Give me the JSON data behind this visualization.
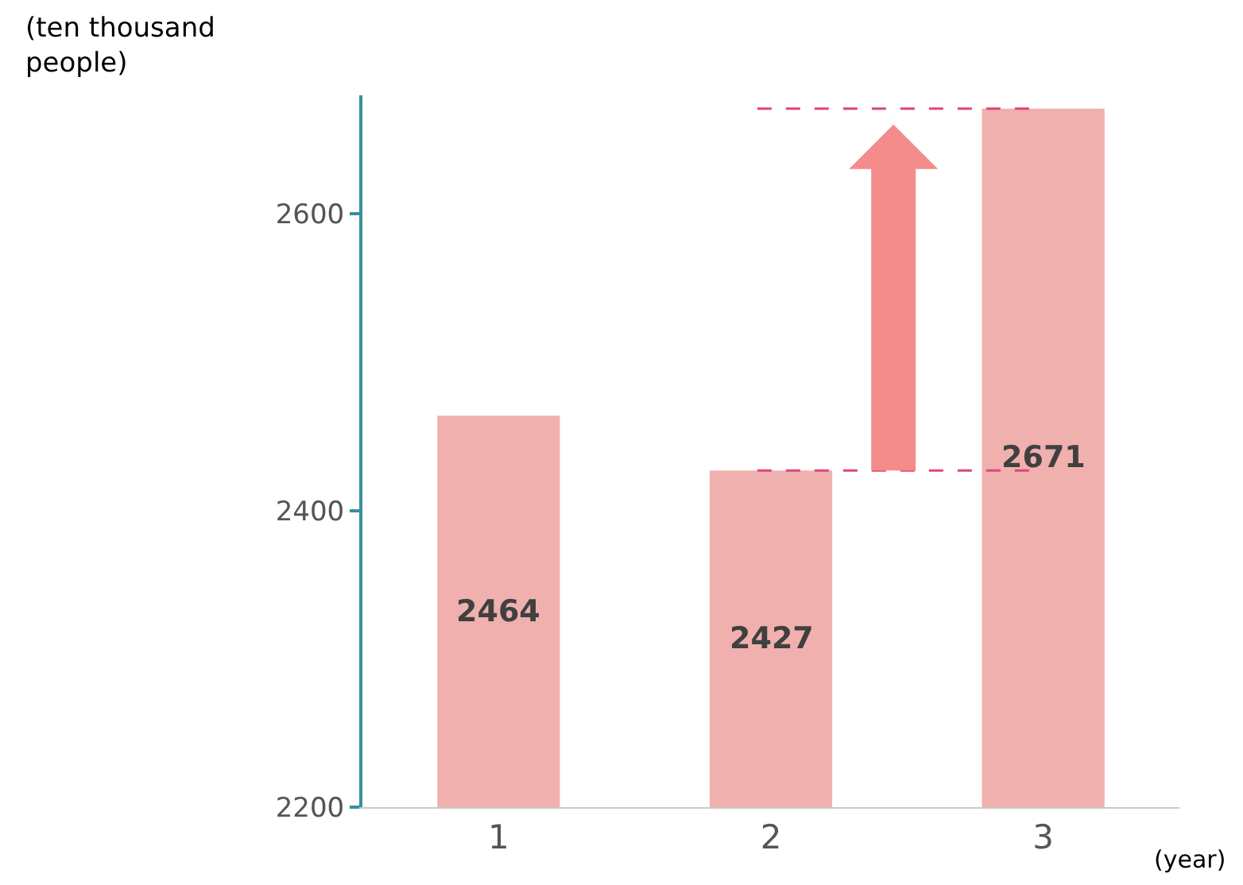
{
  "chart_data": {
    "type": "bar",
    "ylabel": "(ten thousand people)",
    "xlabel": "(year)",
    "categories": [
      "1",
      "2",
      "3"
    ],
    "values": [
      2464,
      2427,
      2671
    ],
    "color": "#f0b0ae",
    "ylim": [
      2200,
      2680
    ],
    "yticks": [
      2200,
      2400,
      2600
    ],
    "data_labels": true,
    "grid": false,
    "legend": false,
    "ref_lines": [
      {
        "axis": "y",
        "value": 2427,
        "color": "#e0457a",
        "line_style": "dashed"
      },
      {
        "axis": "y",
        "value": 2671,
        "color": "#e0457a",
        "line_style": "dashed"
      }
    ]
  }
}
